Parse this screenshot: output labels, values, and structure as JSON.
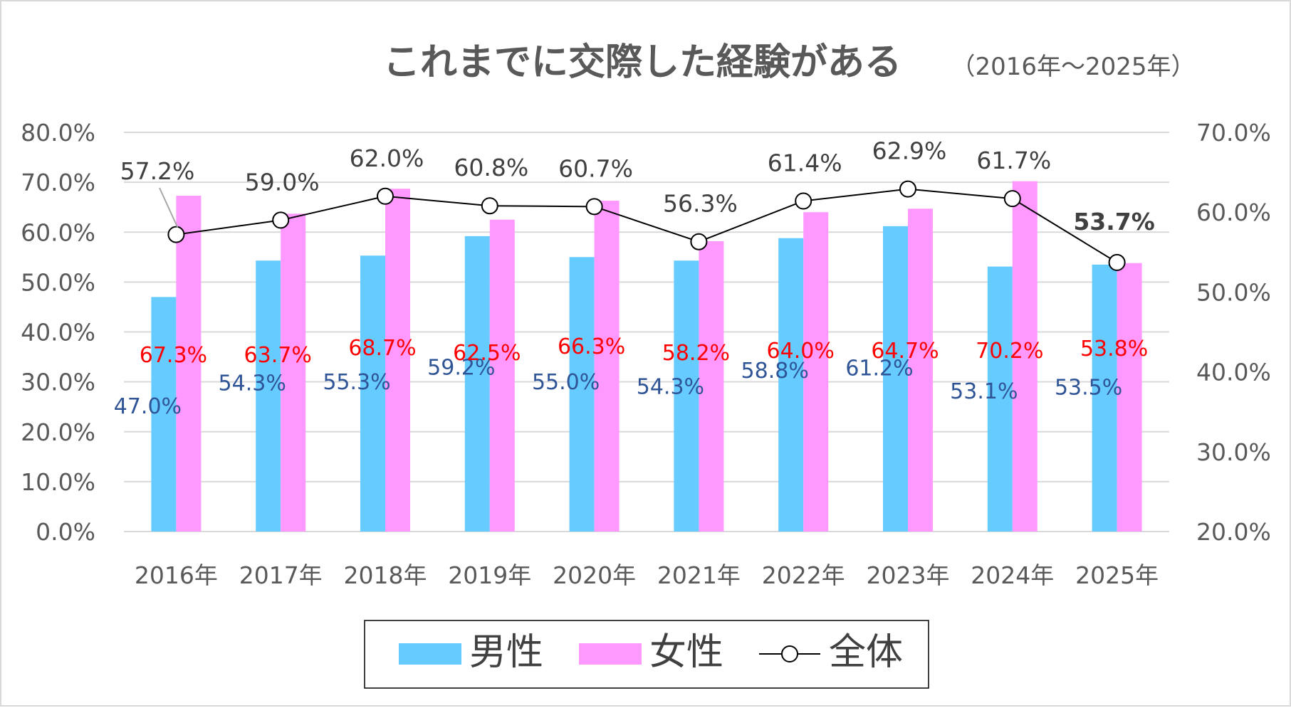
{
  "chart_data": {
    "type": "bar",
    "title": "これまでに交際した経験がある",
    "subtitle": "（2016年〜2025年）",
    "categories": [
      "2016年",
      "2017年",
      "2018年",
      "2019年",
      "2020年",
      "2021年",
      "2022年",
      "2023年",
      "2024年",
      "2025年"
    ],
    "series": [
      {
        "name": "男性",
        "type": "bar",
        "axis": "left",
        "color": "#66CCFF",
        "label_color": "#2F5597",
        "values": [
          47.0,
          54.3,
          55.3,
          59.2,
          55.0,
          54.3,
          58.8,
          61.2,
          53.1,
          53.5
        ]
      },
      {
        "name": "女性",
        "type": "bar",
        "axis": "left",
        "color": "#FF99FF",
        "label_color": "#FF0000",
        "values": [
          67.3,
          63.7,
          68.7,
          62.5,
          66.3,
          58.2,
          64.0,
          64.7,
          70.2,
          53.8
        ]
      },
      {
        "name": "全体",
        "type": "line",
        "axis": "right",
        "color": "#000000",
        "label_color": "#404040",
        "values": [
          57.2,
          59.0,
          62.0,
          60.8,
          60.7,
          56.3,
          61.4,
          62.9,
          61.7,
          53.7
        ]
      }
    ],
    "left_axis": {
      "ylim": [
        0,
        80
      ],
      "ticks": [
        "0.0%",
        "10.0%",
        "20.0%",
        "30.0%",
        "40.0%",
        "50.0%",
        "60.0%",
        "70.0%",
        "80.0%"
      ]
    },
    "right_axis": {
      "ylim": [
        20,
        70
      ],
      "ticks": [
        "20.0%",
        "30.0%",
        "40.0%",
        "50.0%",
        "60.0%",
        "70.0%"
      ]
    },
    "labels": {
      "male": [
        "47.0%",
        "54.3%",
        "55.3%",
        "59.2%",
        "55.0%",
        "54.3%",
        "58.8%",
        "61.2%",
        "53.1%",
        "53.5%"
      ],
      "female": [
        "67.3%",
        "63.7%",
        "68.7%",
        "62.5%",
        "66.3%",
        "58.2%",
        "64.0%",
        "64.7%",
        "70.2%",
        "53.8%"
      ],
      "total": [
        "57.2%",
        "59.0%",
        "62.0%",
        "60.8%",
        "60.7%",
        "56.3%",
        "61.4%",
        "62.9%",
        "61.7%",
        "53.7%"
      ]
    },
    "grid": true,
    "legend": {
      "position": "bottom",
      "items": [
        "男性",
        "女性",
        "全体"
      ]
    }
  }
}
